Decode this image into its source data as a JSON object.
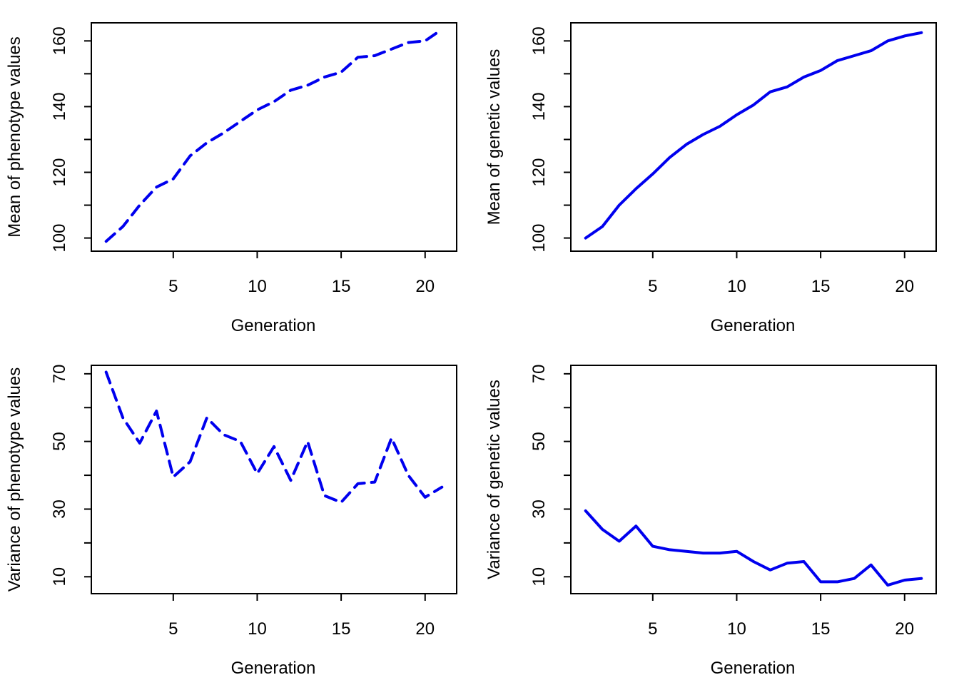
{
  "chart_data": [
    {
      "type": "line",
      "title": "",
      "xlabel": "Generation",
      "ylabel": "Mean of phenotype values",
      "xlim": [
        0.12,
        21.88
      ],
      "ylim": [
        96,
        165.5
      ],
      "xticks": [
        5,
        10,
        15,
        20
      ],
      "yticks": [
        100,
        120,
        140,
        160
      ],
      "grid": false,
      "x": [
        1,
        2,
        3,
        4,
        5,
        6,
        7,
        8,
        9,
        10,
        11,
        12,
        13,
        14,
        15,
        16,
        17,
        18,
        19,
        20,
        21
      ],
      "series": [
        {
          "values": [
            99,
            103.5,
            110,
            115.5,
            118,
            125,
            129,
            132,
            135.5,
            139,
            141.5,
            145,
            146.5,
            149,
            150.5,
            155,
            155.5,
            157.5,
            159.5,
            160,
            163.5
          ],
          "color": "#0000EE",
          "dash": "dashed"
        }
      ]
    },
    {
      "type": "line",
      "title": "",
      "xlabel": "Generation",
      "ylabel": "Mean of genetic values",
      "xlim": [
        0.12,
        21.88
      ],
      "ylim": [
        96,
        165.5
      ],
      "xticks": [
        5,
        10,
        15,
        20
      ],
      "yticks": [
        100,
        120,
        140,
        160
      ],
      "grid": false,
      "x": [
        1,
        2,
        3,
        4,
        5,
        6,
        7,
        8,
        9,
        10,
        11,
        12,
        13,
        14,
        15,
        16,
        17,
        18,
        19,
        20,
        21
      ],
      "series": [
        {
          "values": [
            100,
            103.5,
            110,
            115,
            119.5,
            124.5,
            128.5,
            131.5,
            134,
            137.5,
            140.5,
            144.5,
            146,
            149,
            151,
            154,
            155.5,
            157,
            160,
            161.5,
            162.5
          ],
          "color": "#0000EE",
          "dash": "solid"
        }
      ]
    },
    {
      "type": "line",
      "title": "",
      "xlabel": "Generation",
      "ylabel": "Variance of phenotype values",
      "xlim": [
        0.12,
        21.88
      ],
      "ylim": [
        5,
        72.5
      ],
      "xticks": [
        5,
        10,
        15,
        20
      ],
      "yticks": [
        10,
        30,
        50,
        70
      ],
      "grid": false,
      "x": [
        1,
        2,
        3,
        4,
        5,
        6,
        7,
        8,
        9,
        10,
        11,
        12,
        13,
        14,
        15,
        16,
        17,
        18,
        19,
        20,
        21
      ],
      "series": [
        {
          "values": [
            70.5,
            57,
            49.5,
            59,
            39.5,
            44,
            57,
            52,
            50,
            40.5,
            48.5,
            38.5,
            50,
            34,
            32,
            37.5,
            38,
            51,
            40,
            33.5,
            36.5
          ],
          "color": "#0000EE",
          "dash": "dashed"
        }
      ]
    },
    {
      "type": "line",
      "title": "",
      "xlabel": "Generation",
      "ylabel": "Variance of genetic values",
      "xlim": [
        0.12,
        21.88
      ],
      "ylim": [
        5,
        72.5
      ],
      "xticks": [
        5,
        10,
        15,
        20
      ],
      "yticks": [
        10,
        30,
        50,
        70
      ],
      "grid": false,
      "x": [
        1,
        2,
        3,
        4,
        5,
        6,
        7,
        8,
        9,
        10,
        11,
        12,
        13,
        14,
        15,
        16,
        17,
        18,
        19,
        20,
        21
      ],
      "series": [
        {
          "values": [
            29.5,
            24,
            20.5,
            25,
            19,
            18,
            17.5,
            17,
            17,
            17.5,
            14.5,
            12,
            14,
            14.5,
            8.5,
            8.5,
            9.5,
            13.5,
            7.5,
            9,
            9.5
          ],
          "color": "#0000EE",
          "dash": "solid"
        }
      ]
    }
  ]
}
